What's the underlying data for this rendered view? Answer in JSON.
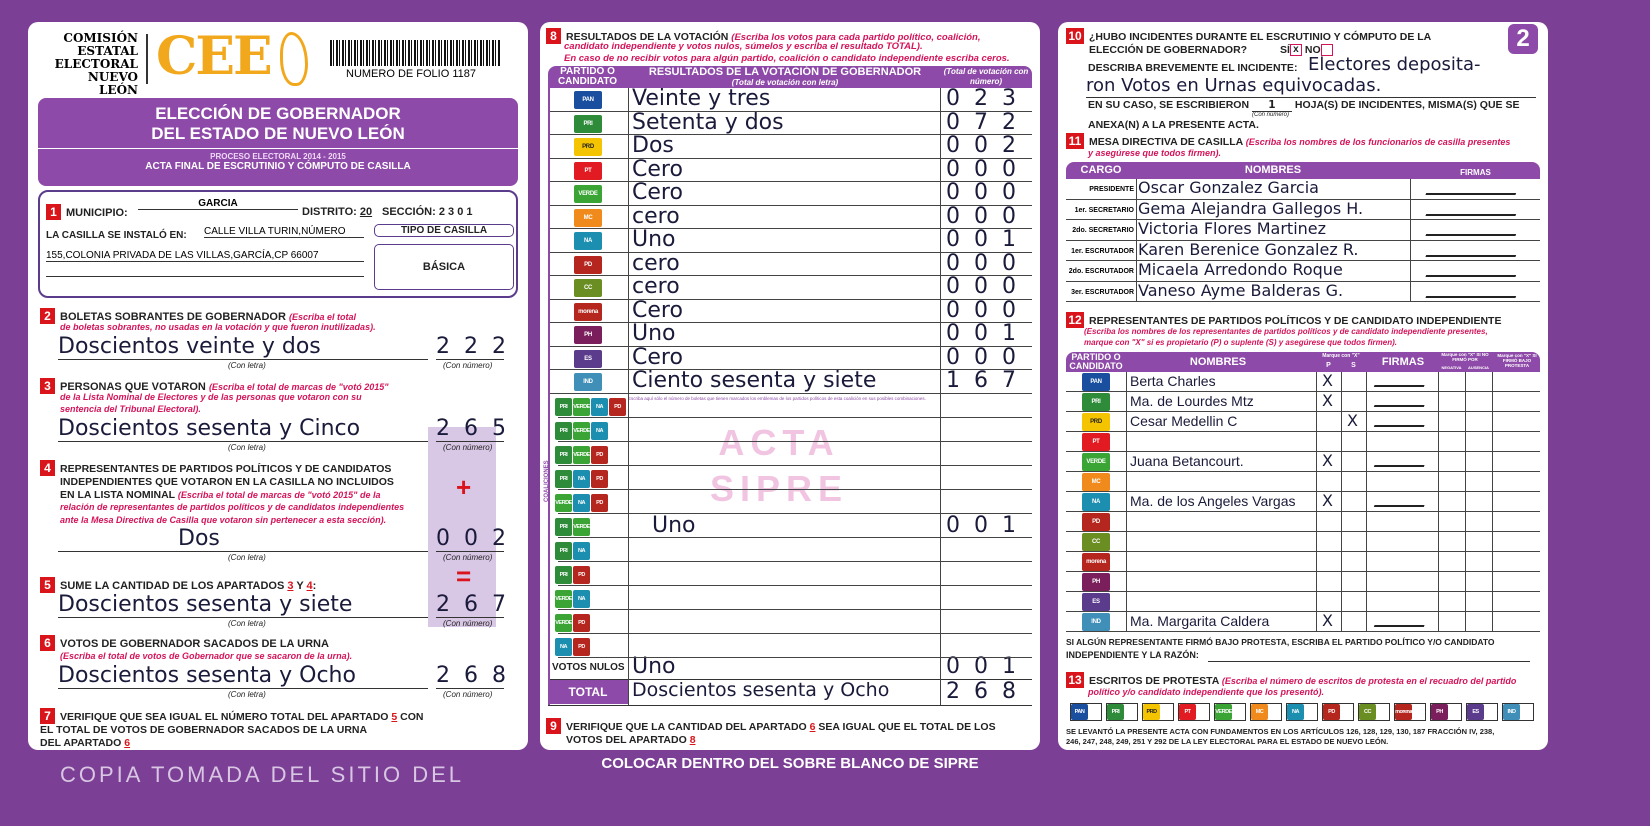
{
  "page_badge": "2",
  "bottom_strip": "COLOCAR DENTRO DEL SOBRE BLANCO DE SIPRE",
  "watermark_pink": [
    "ACTA",
    "SIPRE"
  ],
  "watermark_gray": "COPIA TOMADA DEL SITIO DEL",
  "colors": {
    "purple": "#8e4aa8",
    "frame": "#7b3f95",
    "red": "#d9141b",
    "instruction": "#d4145a",
    "logo": "#f2a81d"
  },
  "left": {
    "org": [
      "COMISIÓN",
      "ESTATAL",
      "ELECTORAL",
      "NUEVO LEÓN"
    ],
    "logo": "CEE",
    "folio": "NUMERO DE FOLIO 1187",
    "title1": "ELECCIÓN DE GOBERNADOR",
    "title2": "DEL ESTADO DE NUEVO LEÓN",
    "process": "PROCESO ELECTORAL  2014 - 2015",
    "acta": "ACTA FINAL DE ESCRUTINIO Y CÓMPUTO DE CASILLA",
    "s1": {
      "n": "1",
      "municipio_label": "MUNICIPIO:",
      "municipio": "GARCIA",
      "distrito_label": "DISTRITO:",
      "distrito": "20",
      "seccion_label": "SECCIÓN:",
      "seccion": "2 3 0 1",
      "casilla_label": "LA CASILLA SE INSTALÓ EN:",
      "address1": "CALLE VILLA TURIN,NÚMERO",
      "address2": "155,COLONIA PRIVADA DE LAS VILLAS,GARCÍA,CP 66007",
      "tipo_label": "TIPO DE CASILLA",
      "tipo": "BÁSICA"
    },
    "s2": {
      "n": "2",
      "title": "BOLETAS SOBRANTES DE GOBERNADOR",
      "inst1": "(Escriba el total",
      "inst2": "de boletas sobrantes, no usadas en la votación y que fueron inutilizadas).",
      "letra": "Doscientos veinte y dos",
      "numero": "222"
    },
    "s3": {
      "n": "3",
      "title": "PERSONAS QUE VOTARON",
      "inst1": "(Escriba el total de marcas de \"votó 2015\"",
      "inst2": "de la Lista Nominal de Electores y de las personas que votaron con su",
      "inst3": "sentencia del Tribunal Electoral).",
      "letra": "Doscientos sesenta y Cinco",
      "numero": "265"
    },
    "s4": {
      "n": "4",
      "t1": "REPRESENTANTES DE PARTIDOS POLÍTICOS Y DE CANDIDATOS",
      "t2": "INDEPENDIENTES QUE VOTARON EN LA CASILLA NO INCLUIDOS",
      "t3": "EN LA LISTA NOMINAL",
      "inst1": "(Escriba el total de marcas de \"votó 2015\" de la",
      "inst2": "relación de representantes de partidos políticos y de candidatos independientes",
      "inst3": "ante la Mesa Directiva de Casilla que votaron sin pertenecer a esta sección).",
      "letra": "Dos",
      "numero": "002",
      "sign": "+"
    },
    "s5": {
      "n": "5",
      "title": "SUME LA CANTIDAD DE LOS APARTADOS",
      "a": "3",
      "y": "Y",
      "b": "4",
      "colon": ":",
      "letra": "Doscientos sesenta y siete",
      "numero": "267",
      "sign": "="
    },
    "s6": {
      "n": "6",
      "title": "VOTOS DE GOBERNADOR SACADOS DE LA URNA",
      "inst": "(Escriba el total de votos de Gobernador que se sacaron de la urna).",
      "letra": "Doscientos sesenta y Ocho",
      "numero": "268"
    },
    "s7": {
      "n": "7",
      "t1": "VERIFIQUE QUE SEA IGUAL EL NÚMERO TOTAL DEL APARTADO",
      "a": "5",
      "t1b": "CON",
      "t2": "EL TOTAL DE VOTOS DE GOBERNADOR SACADOS DE LA URNA",
      "t3": "DEL APARTADO",
      "b": "6"
    },
    "con_letra": "(Con letra)",
    "con_numero": "(Con número)"
  },
  "middle": {
    "s8": {
      "n": "8",
      "title": "RESULTADOS DE LA VOTACIÓN",
      "inst1": "(Escriba los votos para cada partido político, coalición,",
      "inst2": "candidato independiente y votos nulos, súmelos y escriba el resultado TOTAL).",
      "inst3": "En caso de no recibir votos para algún partido, coalición o candidato independiente escriba ceros."
    },
    "headers": {
      "party": "PARTIDO O CANDIDATO",
      "results": "RESULTADOS DE LA VOTACIÓN DE GOBERNADOR",
      "results_sub": "(Total de votación con letra)",
      "total": "(Total de votación con número)"
    },
    "rows": [
      {
        "party": "PAN",
        "color": "#1a4fa0",
        "letra": "Veinte y tres",
        "numero": "023"
      },
      {
        "party": "PRI",
        "color": "#2e8b3a",
        "letra": "Setenta y dos",
        "numero": "072"
      },
      {
        "party": "PRD",
        "color": "#f5c400",
        "letra": "Dos",
        "numero": "002"
      },
      {
        "party": "PT",
        "color": "#e21b23",
        "letra": "Cero",
        "numero": "000"
      },
      {
        "party": "VERDE",
        "color": "#3aa535",
        "letra": "Cero",
        "numero": "000"
      },
      {
        "party": "MC",
        "color": "#f08a1c",
        "letra": "cero",
        "numero": "000"
      },
      {
        "party": "NA",
        "color": "#1c8fb0",
        "letra": "Uno",
        "numero": "001"
      },
      {
        "party": "PD",
        "color": "#b5261e",
        "letra": "cero",
        "numero": "000"
      },
      {
        "party": "CC",
        "color": "#6b8e23",
        "letra": "cero",
        "numero": "000"
      },
      {
        "party": "morena",
        "color": "#b5261e",
        "letra": "Cero",
        "numero": "000"
      },
      {
        "party": "PH",
        "color": "#7a1f5c",
        "letra": "Uno",
        "numero": "001"
      },
      {
        "party": "ES",
        "color": "#5a3b8c",
        "letra": "Cero",
        "numero": "000"
      },
      {
        "party": "IND",
        "color": "#3f8fb8",
        "letra": "Ciento sesenta y siete",
        "numero": "167"
      }
    ],
    "coalition_label": "COALICIONES",
    "coalition_note": "Escriba aquí sólo el número de boletas que tienen marcados los emblemas de los partidos políticos de esta coalición en sus posibles combinaciones.",
    "coalitions": [
      {
        "parties": [
          "PRI",
          "VERDE",
          "NA",
          "PD"
        ],
        "letra": "",
        "numero": ""
      },
      {
        "parties": [
          "PRI",
          "VERDE",
          "NA"
        ],
        "letra": "",
        "numero": ""
      },
      {
        "parties": [
          "PRI",
          "VERDE",
          "PD"
        ],
        "letra": "",
        "numero": ""
      },
      {
        "parties": [
          "PRI",
          "NA",
          "PD"
        ],
        "letra": "",
        "numero": ""
      },
      {
        "parties": [
          "VERDE",
          "NA",
          "PD"
        ],
        "letra": "",
        "numero": ""
      },
      {
        "parties": [
          "PRI",
          "VERDE"
        ],
        "letra": "Uno",
        "numero": "001"
      },
      {
        "parties": [
          "PRI",
          "NA"
        ],
        "letra": "",
        "numero": ""
      },
      {
        "parties": [
          "PRI",
          "PD"
        ],
        "letra": "",
        "numero": ""
      },
      {
        "parties": [
          "VERDE",
          "NA"
        ],
        "letra": "",
        "numero": ""
      },
      {
        "parties": [
          "VERDE",
          "PD"
        ],
        "letra": "",
        "numero": ""
      },
      {
        "parties": [
          "NA",
          "PD"
        ],
        "letra": "",
        "numero": ""
      }
    ],
    "nulos": {
      "label": "VOTOS NULOS",
      "letra": "Uno",
      "numero": "001"
    },
    "total": {
      "label": "TOTAL",
      "letra": "Doscientos sesenta y Ocho",
      "numero": "268"
    },
    "s9": {
      "n": "9",
      "t1": "VERIFIQUE QUE LA CANTIDAD DEL APARTADO",
      "a": "6",
      "t1b": "SEA IGUAL QUE EL TOTAL DE LOS",
      "t2": "VOTOS DEL APARTADO",
      "b": "8"
    }
  },
  "right": {
    "s10": {
      "n": "10",
      "t1": "¿HUBO INCIDENTES DURANTE EL ESCRUTINIO Y CÓMPUTO DE LA",
      "t2": "ELECCIÓN DE GOBERNADOR?",
      "si": "SÍ",
      "no": "NO",
      "si_checked": true,
      "describe": "DESCRIBA BREVEMENTE EL INCIDENTE:",
      "incident1": "Electores deposita-",
      "incident2": "ron Votos en Urnas equivocadas.",
      "hojas1": "EN SU CASO, SE ESCRIBIERON",
      "hojas": "1",
      "hojas_sub": "(Con número)",
      "hojas2": "HOJA(S) DE INCIDENTES, MISMA(S) QUE SE",
      "hojas3": "ANEXA(N) A LA PRESENTE ACTA."
    },
    "s11": {
      "n": "11",
      "title": "MESA DIRECTIVA DE CASILLA",
      "inst1": "(Escriba los nombres de los funcionarios de casilla presentes",
      "inst2": "y asegúrese que todos firmen).",
      "h_cargo": "CARGO",
      "h_nombres": "NOMBRES",
      "h_firmas": "FIRMAS",
      "rows": [
        {
          "cargo": "PRESIDENTE",
          "nombre": "Oscar Gonzalez Garcia"
        },
        {
          "cargo": "1er. SECRETARIO",
          "nombre": "Gema Alejandra Gallegos H."
        },
        {
          "cargo": "2do. SECRETARIO",
          "nombre": "Victoria Flores Martinez"
        },
        {
          "cargo": "1er. ESCRUTADOR",
          "nombre": "Karen Berenice Gonzalez R."
        },
        {
          "cargo": "2do. ESCRUTADOR",
          "nombre": "Micaela Arredondo Roque"
        },
        {
          "cargo": "3er. ESCRUTADOR",
          "nombre": "Vaneso Ayme Balderas G."
        }
      ]
    },
    "s12": {
      "n": "12",
      "title": "REPRESENTANTES DE PARTIDOS POLÍTICOS Y DE CANDIDATO INDEPENDIENTE",
      "inst1": "(Escriba los nombres de los representantes de partidos políticos y de candidato independiente presentes,",
      "inst2": "marque con \"X\" si es propietario (P) o suplente (S) y asegúrese que todos firmen).",
      "h_party": "PARTIDO O CANDIDATO",
      "h_nombres": "NOMBRES",
      "h_marque": "Marque con \"X\"",
      "h_p": "P",
      "h_s": "S",
      "h_firmas": "FIRMAS",
      "h_nofirmo": "Marque con \"X\" SI NO FIRMÓ POR",
      "h_neg": "NEGATIVA",
      "h_aus": "AUSENCIA",
      "h_protesta": "Marque con \"X\" SI FIRMÓ BAJO PROTESTA",
      "rows": [
        {
          "party": "PAN",
          "nombre": "Berta Charles",
          "p": "X",
          "s": ""
        },
        {
          "party": "PRI",
          "nombre": "Ma. de Lourdes Mtz",
          "p": "X",
          "s": ""
        },
        {
          "party": "PRD",
          "nombre": "Cesar Medellin C",
          "p": "",
          "s": "X"
        },
        {
          "party": "PT",
          "nombre": "",
          "p": "",
          "s": ""
        },
        {
          "party": "VERDE",
          "nombre": "Juana Betancourt.",
          "p": "X",
          "s": ""
        },
        {
          "party": "MC",
          "nombre": "",
          "p": "",
          "s": ""
        },
        {
          "party": "NA",
          "nombre": "Ma. de los Angeles Vargas",
          "p": "X",
          "s": ""
        },
        {
          "party": "PD",
          "nombre": "",
          "p": "",
          "s": ""
        },
        {
          "party": "CC",
          "nombre": "",
          "p": "",
          "s": ""
        },
        {
          "party": "morena",
          "nombre": "",
          "p": "",
          "s": ""
        },
        {
          "party": "PH",
          "nombre": "",
          "p": "",
          "s": ""
        },
        {
          "party": "ES",
          "nombre": "",
          "p": "",
          "s": ""
        },
        {
          "party": "IND",
          "nombre": "Ma. Margarita Caldera",
          "p": "X",
          "s": ""
        }
      ]
    },
    "protest1": "SI ALGÚN REPRESENTANTE FIRMÓ BAJO PROTESTA, ESCRIBA EL PARTIDO POLÍTICO Y/O CANDIDATO",
    "protest2": "INDEPENDIENTE Y LA RAZÓN:",
    "s13": {
      "n": "13",
      "title": "ESCRITOS DE PROTESTA",
      "inst1": "(Escriba el número de escritos de protesta en el recuadro del partido",
      "inst2": "político y/o candidato independiente que los presentó)."
    },
    "footer1": "SE LEVANTÓ LA PRESENTE ACTA CON FUNDAMENTOS EN LOS ARTÍCULOS 126, 128, 129, 130, 187 FRACCIÓN IV, 238,",
    "footer2": "246, 247, 248, 249, 251 Y 292 DE LA LEY ELECTORAL PARA EL ESTADO DE NUEVO LEÓN."
  }
}
